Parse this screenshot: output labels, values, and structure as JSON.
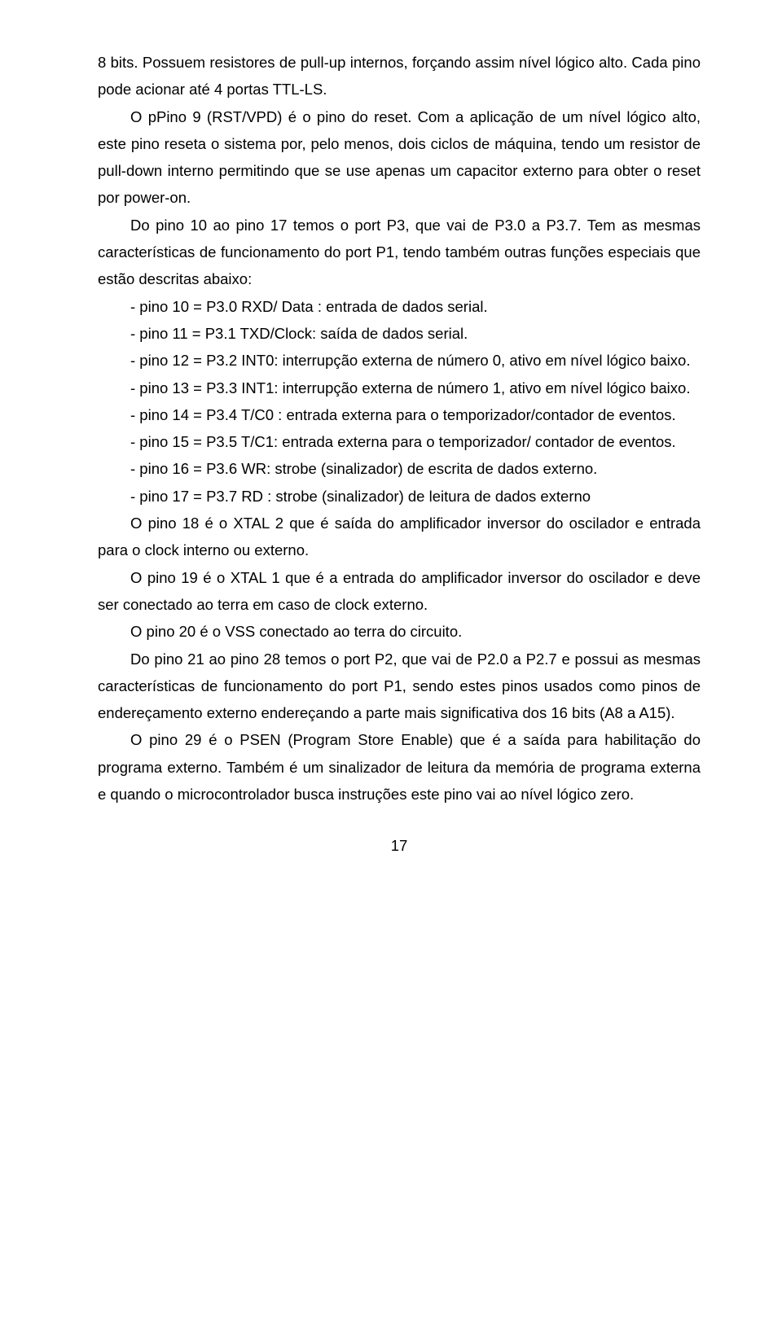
{
  "p1": "8 bits. Possuem resistores de pull-up internos, forçando assim nível lógico alto. Cada pino pode acionar até 4 portas TTL-LS.",
  "p2": "O pPino 9 (RST/VPD) é o pino do reset. Com a aplicação de um nível lógico alto, este pino reseta o sistema por, pelo menos, dois ciclos de máquina, tendo um resistor de pull-down interno permitindo que se use apenas um capacitor externo para obter o reset por power-on.",
  "p3": "Do pino 10 ao pino 17 temos o port P3, que vai de P3.0 a P3.7. Tem as mesmas características de funcionamento do port P1, tendo também outras funções especiais que estão descritas abaixo:",
  "i1": "- pino 10 = P3.0 RXD/ Data : entrada de dados serial.",
  "i2": "- pino 11 = P3.1 TXD/Clock: saída de dados serial.",
  "i3": "- pino 12  = P3.2 INT0: interrupção externa de número 0, ativo em nível lógico baixo.",
  "i4": "- pino 13  = P3.3 INT1: interrupção externa de número 1, ativo em nível lógico baixo.",
  "i5": "- pino 14  = P3.4 T/C0 : entrada externa para o temporizador/contador de eventos.",
  "i6": "- pino 15  = P3.5 T/C1: entrada externa para o temporizador/ contador de eventos.",
  "i7": "- pino 16 = P3.6 WR: strobe (sinalizador) de escrita de dados externo.",
  "i8": "- pino 17 = P3.7 RD : strobe (sinalizador) de leitura de dados externo",
  "p4": "O pino 18 é o XTAL 2 que é  saída do amplificador inversor do oscilador e entrada para o clock interno ou externo.",
  "p5": "O pino 19 é o XTAL 1 que é a entrada do amplificador inversor do oscilador e deve ser conectado ao terra em caso de clock externo.",
  "p6": "O pino 20 é o VSS conectado ao terra do circuito.",
  "p7": "Do pino 21 ao pino 28 temos o port P2, que vai de P2.0 a P2.7 e possui as mesmas características de funcionamento do port P1, sendo estes pinos usados como pinos de endereçamento externo endereçando a parte mais significativa dos 16 bits (A8 a A15).",
  "p8": "O pino 29 é o PSEN (Program Store Enable) que é a saída para habilitação do programa externo. Também é um sinalizador de leitura da memória de programa externa e quando o microcontrolador busca instruções este pino vai ao nível lógico zero.",
  "pagenum": "17"
}
